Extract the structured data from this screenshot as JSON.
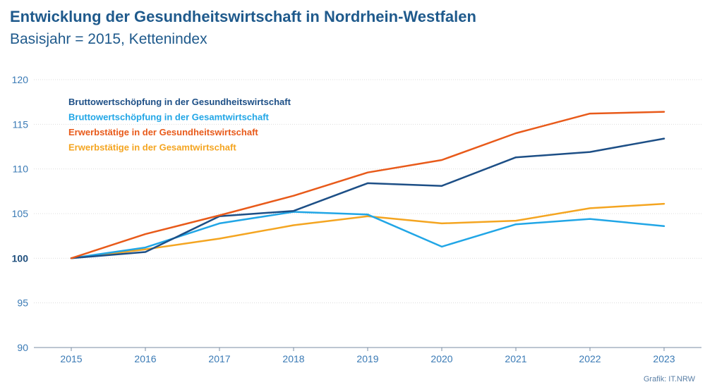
{
  "chart_data": {
    "type": "line",
    "title": "Entwicklung der Gesundheitswirtschaft in Nordrhein-Westfalen",
    "subtitle": "Basisjahr = 2015, Kettenindex",
    "source": "Grafik: IT.NRW",
    "x": [
      "2015",
      "2016",
      "2017",
      "2018",
      "2019",
      "2020",
      "2021",
      "2022",
      "2023"
    ],
    "ylim": [
      90,
      120
    ],
    "yticks": [
      90,
      95,
      100,
      105,
      110,
      115,
      120
    ],
    "legend_position": "top-left",
    "grid": "horizontal",
    "series": [
      {
        "name": "Bruttowertschöpfung in der Gesundheitswirtschaft",
        "color": "#1d4f86",
        "values": [
          100,
          100.7,
          104.7,
          105.3,
          108.4,
          108.1,
          111.3,
          111.9,
          113.4
        ]
      },
      {
        "name": "Bruttowertschöpfung in der Gesamtwirtschaft",
        "color": "#21a6e6",
        "values": [
          100,
          101.2,
          103.9,
          105.2,
          104.9,
          101.3,
          103.8,
          104.4,
          103.6
        ]
      },
      {
        "name": "Erwerbstätige in der Gesundheitswirtschaft",
        "color": "#e85a1a",
        "values": [
          100,
          102.7,
          104.8,
          107.0,
          109.6,
          111.0,
          114.0,
          116.2,
          116.4
        ]
      },
      {
        "name": "Erwerbstätige in der Gesamtwirtschaft",
        "color": "#f4a521",
        "values": [
          100,
          101.0,
          102.2,
          103.7,
          104.7,
          103.9,
          104.2,
          105.6,
          106.1
        ]
      }
    ]
  }
}
